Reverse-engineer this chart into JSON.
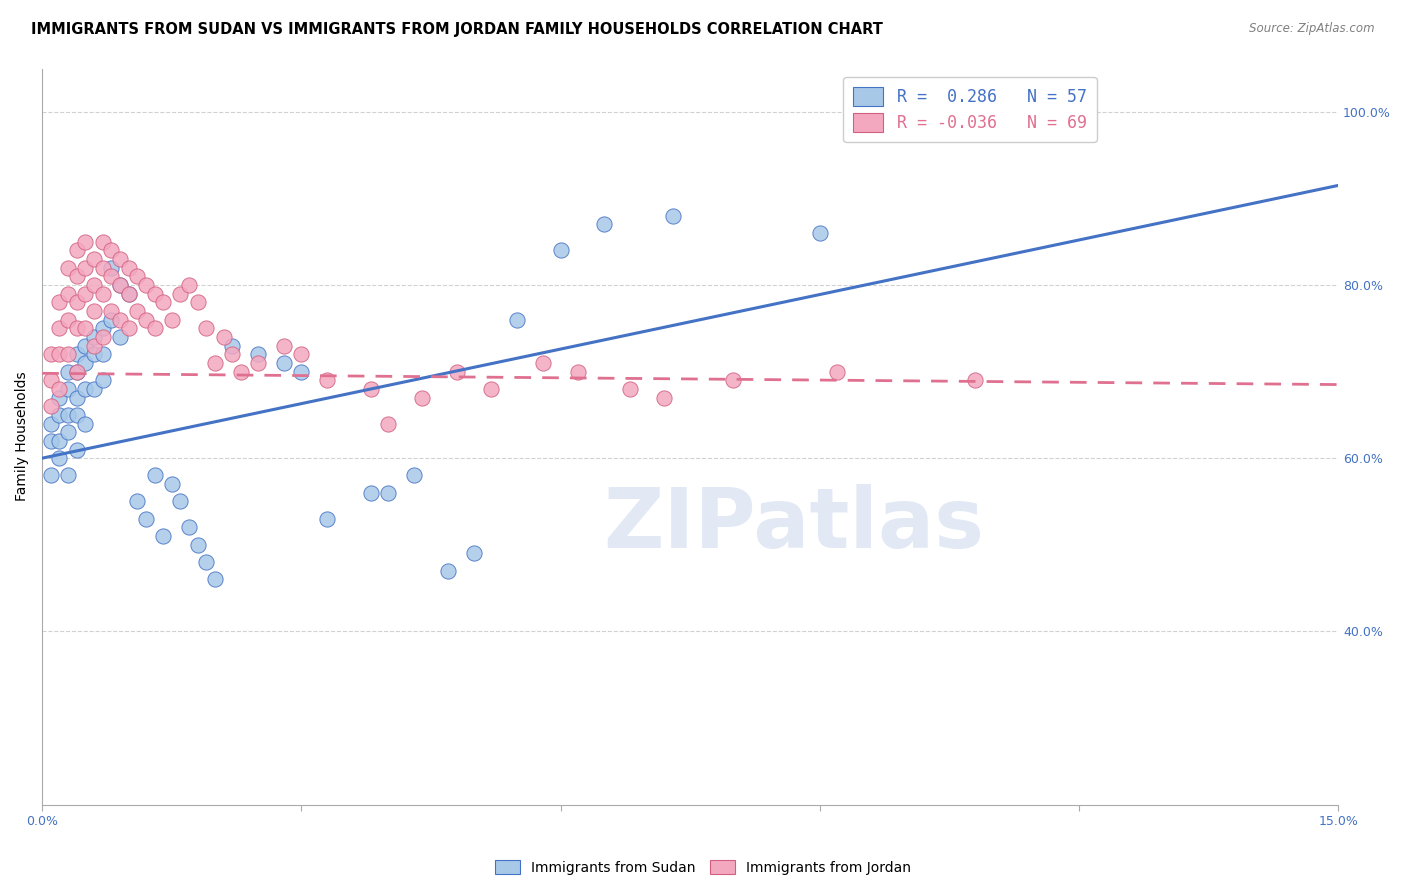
{
  "title": "IMMIGRANTS FROM SUDAN VS IMMIGRANTS FROM JORDAN FAMILY HOUSEHOLDS CORRELATION CHART",
  "source": "Source: ZipAtlas.com",
  "ylabel": "Family Households",
  "xlim": [
    0.0,
    0.15
  ],
  "ylim": [
    0.2,
    1.05
  ],
  "color_sudan": "#a8c8e8",
  "color_jordan": "#f4a8c0",
  "color_line_sudan": "#4472c4",
  "color_line_jordan": "#e07090",
  "sudan_r": 0.286,
  "sudan_n": 57,
  "jordan_r": -0.036,
  "jordan_n": 69,
  "sudan_line_x0": 0.0,
  "sudan_line_y0": 0.6,
  "sudan_line_x1": 0.15,
  "sudan_line_y1": 0.915,
  "jordan_line_x0": 0.0,
  "jordan_line_y0": 0.698,
  "jordan_line_x1": 0.15,
  "jordan_line_y1": 0.685,
  "sudan_scatter_x": [
    0.001,
    0.001,
    0.001,
    0.002,
    0.002,
    0.002,
    0.002,
    0.003,
    0.003,
    0.003,
    0.003,
    0.003,
    0.004,
    0.004,
    0.004,
    0.004,
    0.004,
    0.005,
    0.005,
    0.005,
    0.005,
    0.006,
    0.006,
    0.006,
    0.007,
    0.007,
    0.007,
    0.008,
    0.008,
    0.009,
    0.009,
    0.01,
    0.011,
    0.012,
    0.013,
    0.014,
    0.015,
    0.016,
    0.017,
    0.018,
    0.019,
    0.02,
    0.022,
    0.025,
    0.028,
    0.03,
    0.033,
    0.038,
    0.04,
    0.043,
    0.047,
    0.05,
    0.055,
    0.06,
    0.065,
    0.073,
    0.09
  ],
  "sudan_scatter_y": [
    0.64,
    0.62,
    0.58,
    0.67,
    0.65,
    0.62,
    0.6,
    0.7,
    0.68,
    0.65,
    0.63,
    0.58,
    0.72,
    0.7,
    0.67,
    0.65,
    0.61,
    0.73,
    0.71,
    0.68,
    0.64,
    0.74,
    0.72,
    0.68,
    0.75,
    0.72,
    0.69,
    0.82,
    0.76,
    0.8,
    0.74,
    0.79,
    0.55,
    0.53,
    0.58,
    0.51,
    0.57,
    0.55,
    0.52,
    0.5,
    0.48,
    0.46,
    0.73,
    0.72,
    0.71,
    0.7,
    0.53,
    0.56,
    0.56,
    0.58,
    0.47,
    0.49,
    0.76,
    0.84,
    0.87,
    0.88,
    0.86
  ],
  "jordan_scatter_x": [
    0.001,
    0.001,
    0.001,
    0.002,
    0.002,
    0.002,
    0.002,
    0.003,
    0.003,
    0.003,
    0.003,
    0.004,
    0.004,
    0.004,
    0.004,
    0.004,
    0.005,
    0.005,
    0.005,
    0.005,
    0.006,
    0.006,
    0.006,
    0.006,
    0.007,
    0.007,
    0.007,
    0.007,
    0.008,
    0.008,
    0.008,
    0.009,
    0.009,
    0.009,
    0.01,
    0.01,
    0.01,
    0.011,
    0.011,
    0.012,
    0.012,
    0.013,
    0.013,
    0.014,
    0.015,
    0.016,
    0.017,
    0.018,
    0.019,
    0.02,
    0.021,
    0.022,
    0.023,
    0.025,
    0.028,
    0.03,
    0.033,
    0.038,
    0.04,
    0.044,
    0.048,
    0.052,
    0.058,
    0.062,
    0.068,
    0.072,
    0.08,
    0.092,
    0.108
  ],
  "jordan_scatter_y": [
    0.72,
    0.69,
    0.66,
    0.78,
    0.75,
    0.72,
    0.68,
    0.82,
    0.79,
    0.76,
    0.72,
    0.84,
    0.81,
    0.78,
    0.75,
    0.7,
    0.85,
    0.82,
    0.79,
    0.75,
    0.83,
    0.8,
    0.77,
    0.73,
    0.85,
    0.82,
    0.79,
    0.74,
    0.84,
    0.81,
    0.77,
    0.83,
    0.8,
    0.76,
    0.82,
    0.79,
    0.75,
    0.81,
    0.77,
    0.8,
    0.76,
    0.79,
    0.75,
    0.78,
    0.76,
    0.79,
    0.8,
    0.78,
    0.75,
    0.71,
    0.74,
    0.72,
    0.7,
    0.71,
    0.73,
    0.72,
    0.69,
    0.68,
    0.64,
    0.67,
    0.7,
    0.68,
    0.71,
    0.7,
    0.68,
    0.67,
    0.69,
    0.7,
    0.69
  ],
  "watermark_text": "ZIPatlas",
  "legend_label1": "R =  0.286   N = 57",
  "legend_label2": "R = -0.036   N = 69",
  "bottom_label1": "Immigrants from Sudan",
  "bottom_label2": "Immigrants from Jordan"
}
